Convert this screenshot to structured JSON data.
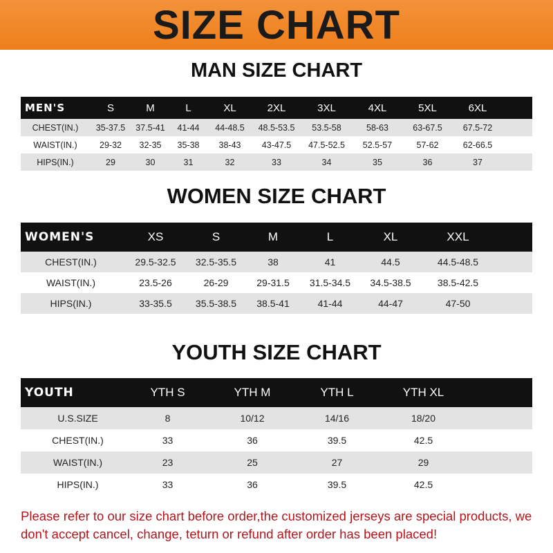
{
  "title": "SIZE CHART",
  "men": {
    "heading": "MAN SIZE CHART",
    "headers": [
      "MEN'S",
      "S",
      "M",
      "L",
      "XL",
      "2XL",
      "3XL",
      "4XL",
      "5XL",
      "6XL"
    ],
    "rows": [
      [
        "CHEST(IN.)",
        "35-37.5",
        "37.5-41",
        "41-44",
        "44-48.5",
        "48.5-53.5",
        "53.5-58",
        "58-63",
        "63-67.5",
        "67.5-72"
      ],
      [
        "WAIST(IN.)",
        "29-32",
        "32-35",
        "35-38",
        "38-43",
        "43-47.5",
        "47.5-52.5",
        "52.5-57",
        "57-62",
        "62-66.5"
      ],
      [
        "HIPS(IN.)",
        "29",
        "30",
        "31",
        "32",
        "33",
        "34",
        "35",
        "36",
        "37"
      ]
    ]
  },
  "women": {
    "heading": "WOMEN SIZE CHART",
    "headers": [
      "WOMEN'S",
      "XS",
      "S",
      "M",
      "L",
      "XL",
      "XXL"
    ],
    "rows": [
      [
        "CHEST(IN.)",
        "29.5-32.5",
        "32.5-35.5",
        "38",
        "41",
        "44.5",
        "44.5-48.5"
      ],
      [
        "WAIST(IN.)",
        "23.5-26",
        "26-29",
        "29-31.5",
        "31.5-34.5",
        "34.5-38.5",
        "38.5-42.5"
      ],
      [
        "HIPS(IN.)",
        "33-35.5",
        "35.5-38.5",
        "38.5-41",
        "41-44",
        "44-47",
        "47-50"
      ]
    ]
  },
  "youth": {
    "heading": "YOUTH SIZE CHART",
    "headers": [
      "YOUTH",
      "YTH S",
      "YTH M",
      "YTH L",
      "YTH XL"
    ],
    "rows": [
      [
        "U.S.SIZE",
        "8",
        "10/12",
        "14/16",
        "18/20"
      ],
      [
        "CHEST(IN.)",
        "33",
        "36",
        "39.5",
        "42.5"
      ],
      [
        "WAIST(IN.)",
        "23",
        "25",
        "27",
        "29"
      ],
      [
        "HIPS(IN.)",
        "33",
        "36",
        "39.5",
        "42.5"
      ]
    ]
  },
  "notice": "Please refer to our size chart before order,the customized jerseys are special products, we don't accept cancel, change, teturn or refund after order has been placed!",
  "colors": {
    "banner": "#ee7f1c",
    "header_row": "#111111",
    "alt_row": "#e3e3e3",
    "notice": "#b3141a"
  }
}
